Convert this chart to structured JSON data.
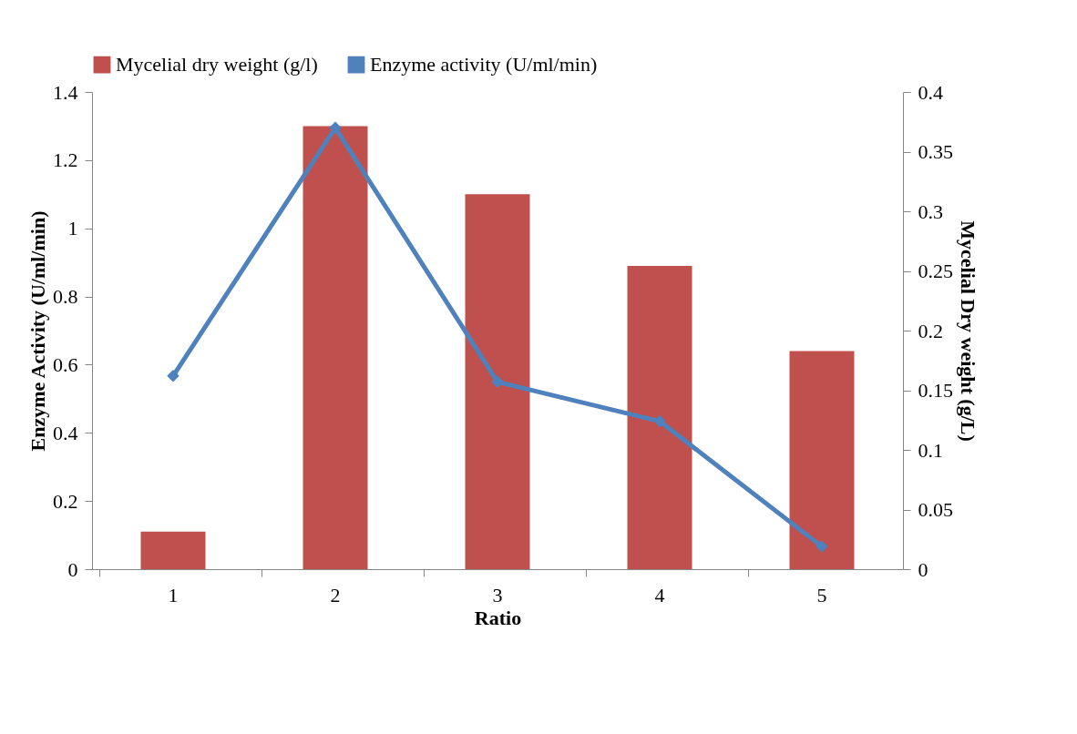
{
  "chart_data": {
    "type": "bar",
    "xlabel": "Ratio",
    "ylabel": "Enzyme Activity (U/ml/min)",
    "y2label": "Mycelial Dry weight (g/L)",
    "categories": [
      "1",
      "2",
      "3",
      "4",
      "5"
    ],
    "series": [
      {
        "name": "Mycelial dry weight (g/l)",
        "color": "#c0504d",
        "values": [
          0.11,
          1.3,
          1.1,
          0.89,
          0.64
        ]
      },
      {
        "name": "Enzyme activity (U/ml/min)",
        "type": "line",
        "axis": "y2",
        "color": "#4f81bd",
        "marker": "diamond",
        "values": [
          0.162,
          0.37,
          0.157,
          0.124,
          0.019
        ]
      }
    ],
    "ylim": [
      0,
      1.4
    ],
    "yticks": [
      0,
      0.2,
      0.4,
      0.6,
      0.8,
      1,
      1.2,
      1.4
    ],
    "y2lim": [
      0,
      0.4
    ],
    "y2ticks": [
      0,
      0.05,
      0.1,
      0.15,
      0.2,
      0.25,
      0.3,
      0.35,
      0.4
    ],
    "legend": "top",
    "grid": false
  }
}
